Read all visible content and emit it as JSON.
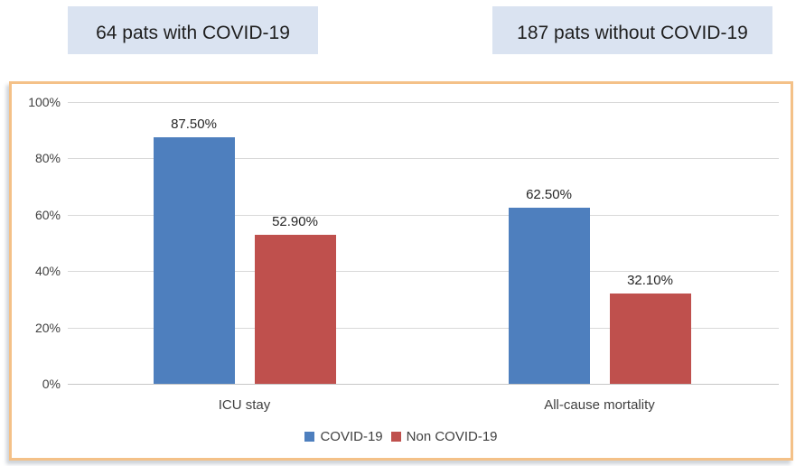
{
  "header": {
    "left_label": "64 pats with COVID-19",
    "right_label": "187 pats without COVID-19"
  },
  "chart_data": {
    "type": "bar",
    "title": "",
    "categories": [
      "ICU stay",
      "All-cause mortality"
    ],
    "series": [
      {
        "name": "COVID-19",
        "color": "#4E7FBE",
        "values": [
          87.5,
          62.5
        ],
        "data_labels": [
          "87.50%",
          "62.50%"
        ]
      },
      {
        "name": "Non COVID-19",
        "color": "#BF504D",
        "values": [
          52.9,
          32.1
        ],
        "data_labels": [
          "52.90%",
          "32.10%"
        ]
      }
    ],
    "xlabel": "",
    "ylabel": "",
    "ylim": [
      0,
      100
    ],
    "y_ticks": [
      100,
      80,
      60,
      40,
      20,
      0
    ],
    "y_tick_suffix": "%",
    "grid": true,
    "legend_position": "bottom",
    "colors": {
      "covid_blue": "#4E7FBE",
      "non_covid_red": "#BF504D",
      "chart_border": "#F4C188",
      "header_bg": "#DAE3F1",
      "gridline": "#D9D9D9",
      "axis_line": "#C6C6C6"
    }
  }
}
